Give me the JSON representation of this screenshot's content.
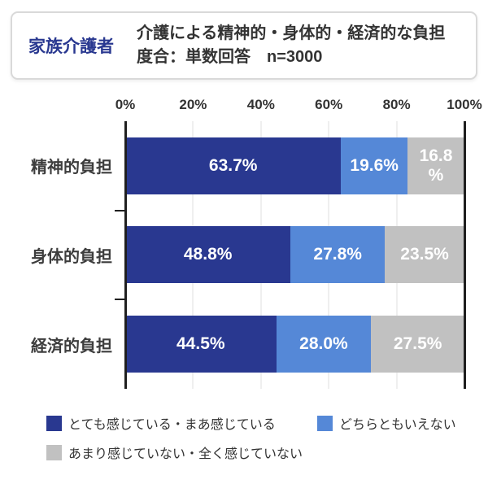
{
  "header": {
    "label": "家族介護者",
    "title": "介護による精神的・身体的・経済的な負担\n度合：単数回答　n=3000"
  },
  "chart_data": {
    "type": "bar",
    "orientation": "horizontal-stacked",
    "title": "介護による精神的・身体的・経済的な負担度合：単数回答　n=3000",
    "sample_size": "n=3000",
    "categories": [
      "精神的負担",
      "身体的負担",
      "経済的負担"
    ],
    "series": [
      {
        "name": "とても感じている・まあ感じている",
        "color": "#293890",
        "values": [
          63.7,
          48.8,
          44.5
        ]
      },
      {
        "name": "どちらともいえない",
        "color": "#5588d7",
        "values": [
          19.6,
          27.8,
          28.0
        ]
      },
      {
        "name": "あまり感じていない・全く感じていない",
        "color": "#c1c1c1",
        "values": [
          16.8,
          23.5,
          27.5
        ]
      }
    ],
    "value_labels": [
      [
        "63.7%",
        "19.6%",
        "16.8\n%"
      ],
      [
        "48.8%",
        "27.8%",
        "23.5%"
      ],
      [
        "44.5%",
        "28.0%",
        "27.5%"
      ]
    ],
    "x_ticks": [
      "0%",
      "20%",
      "40%",
      "60%",
      "80%",
      "100%"
    ],
    "xlim": [
      0,
      100
    ],
    "grid_percents": [
      20,
      40,
      60,
      80
    ],
    "grid": true,
    "legend_position": "bottom",
    "colors": {
      "axis": "#1f1f1f",
      "gridline": "#efefef",
      "value_label_text": "#ffffff",
      "category_label_text": "#3d3d3d",
      "header_label_blue": "#293890"
    }
  }
}
